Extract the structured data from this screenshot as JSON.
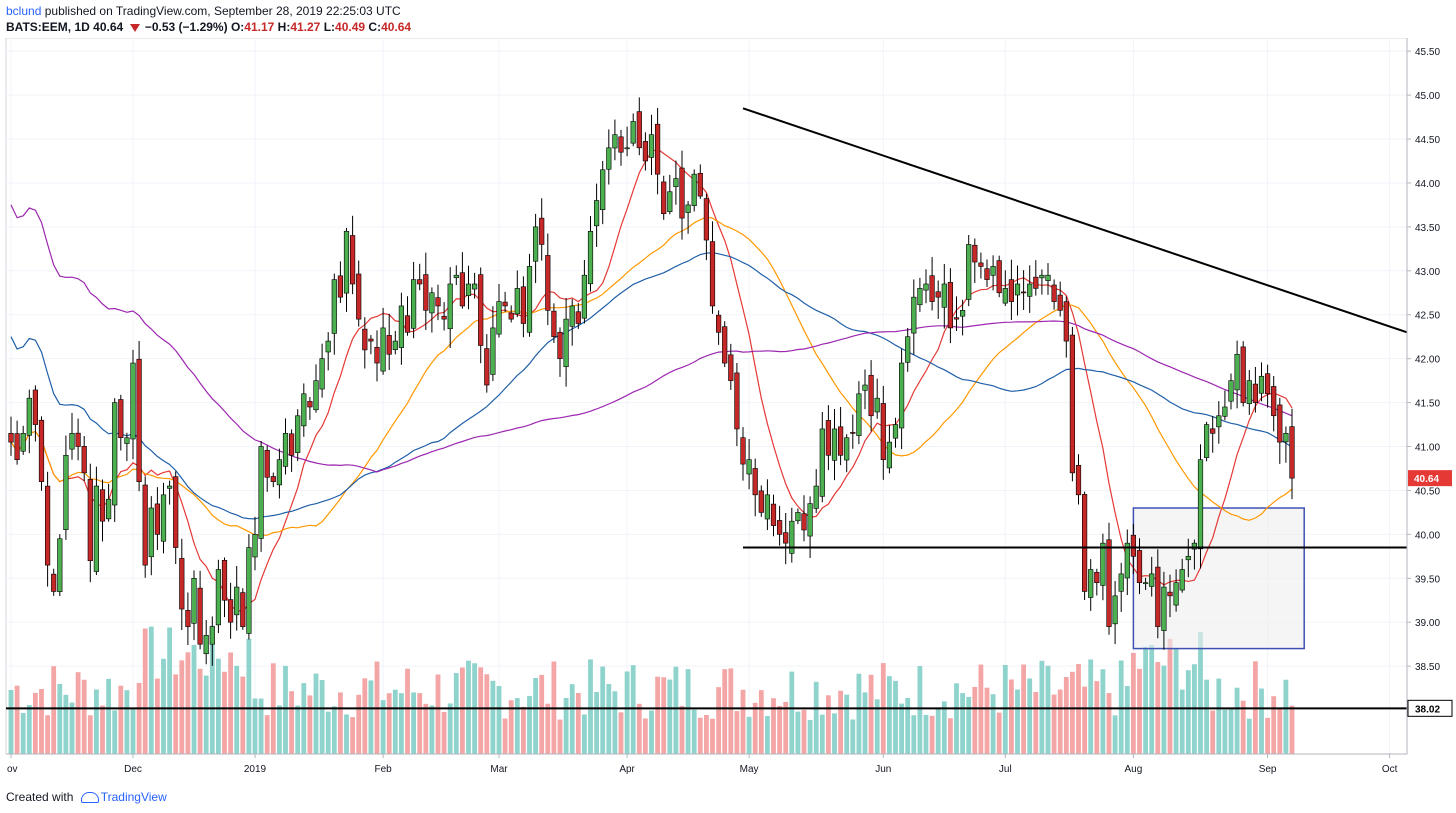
{
  "header": {
    "user": "bclund",
    "published": "published on TradingView.com, September 28, 2019 22:25:03 UTC",
    "symbol": "BATS:EEM, 1D",
    "last": "40.64",
    "change": "−0.53 (−1.29%)",
    "o_label": "O:",
    "o": "41.17",
    "h_label": "H:",
    "h": "41.27",
    "l_label": "L:",
    "l": "40.49",
    "c_label": "C:",
    "c": "40.64"
  },
  "footer": {
    "created_with": "Created with",
    "brand": "TradingView"
  },
  "chart_data": {
    "type": "candlestick",
    "y_axis": {
      "position": "right",
      "min": 37.5,
      "max": 45.65,
      "ticks": [
        "45.50",
        "45.00",
        "44.50",
        "44.00",
        "43.50",
        "43.00",
        "42.50",
        "42.00",
        "41.50",
        "41.00",
        "40.50",
        "40.00",
        "39.50",
        "39.00",
        "38.50"
      ]
    },
    "x_axis": {
      "ticks": [
        {
          "label": "ov",
          "bar": 0
        },
        {
          "label": "Dec",
          "bar": 20
        },
        {
          "label": "2019",
          "bar": 40
        },
        {
          "label": "Feb",
          "bar": 61
        },
        {
          "label": "Mar",
          "bar": 80
        },
        {
          "label": "Apr",
          "bar": 101
        },
        {
          "label": "May",
          "bar": 121
        },
        {
          "label": "Jun",
          "bar": 143
        },
        {
          "label": "Jul",
          "bar": 163
        },
        {
          "label": "Aug",
          "bar": 184
        },
        {
          "label": "Sep",
          "bar": 206
        },
        {
          "label": "Oct",
          "bar": 226
        }
      ]
    },
    "price_label": {
      "value": "40.64",
      "color": "#e53935"
    },
    "support_label": {
      "value": "38.02",
      "color": "#000000"
    },
    "closes": [
      41.05,
      40.85,
      41.15,
      41.55,
      41.25,
      40.6,
      39.65,
      39.35,
      39.95,
      40.9,
      41.15,
      41.0,
      40.7,
      39.7,
      40.55,
      40.15,
      40.4,
      41.5,
      41.1,
      41.1,
      41.95,
      40.6,
      39.65,
      40.3,
      40.0,
      40.45,
      40.55,
      39.85,
      39.15,
      38.95,
      39.5,
      38.75,
      38.85,
      38.95,
      39.6,
      39.25,
      39.0,
      39.4,
      38.95,
      39.85,
      40.0,
      41.0,
      40.65,
      40.6,
      40.85,
      41.15,
      40.9,
      41.35,
      41.6,
      41.45,
      41.75,
      42.0,
      42.2,
      42.9,
      42.7,
      43.45,
      42.85,
      42.45,
      42.1,
      42.2,
      41.95,
      42.35,
      42.05,
      42.2,
      42.6,
      42.3,
      42.9,
      42.85,
      42.55,
      42.75,
      42.6,
      42.45,
      42.85,
      42.95,
      42.6,
      42.85,
      42.85,
      42.15,
      41.7,
      42.35,
      42.65,
      42.6,
      42.45,
      42.8,
      42.4,
      43.05,
      43.5,
      43.3,
      42.55,
      42.25,
      42.0,
      42.45,
      42.6,
      42.4,
      42.95,
      43.45,
      43.8,
      44.15,
      44.4,
      44.55,
      44.35,
      44.4,
      44.7,
      44.4,
      44.25,
      44.55,
      44.1,
      43.65,
      43.9,
      44.05,
      43.6,
      43.75,
      44.1,
      43.85,
      43.35,
      42.6,
      42.3,
      41.95,
      41.75,
      41.2,
      40.8,
      40.85,
      40.45,
      40.25,
      40.45,
      40.1,
      40.0,
      39.9,
      40.15,
      40.25,
      40.05,
      40.35,
      40.55,
      41.2,
      40.9,
      41.2,
      40.9,
      41.1,
      41.15,
      41.6,
      41.7,
      41.35,
      41.55,
      40.85,
      41.05,
      41.25,
      41.95,
      42.25,
      42.7,
      42.8,
      42.85,
      42.65,
      42.7,
      42.85,
      42.35,
      42.45,
      42.55,
      43.3,
      43.1,
      43.05,
      42.9,
      43.05,
      42.75,
      42.8,
      42.65,
      42.85,
      42.75,
      42.85,
      42.8,
      42.95,
      42.95,
      42.65,
      42.55,
      42.2,
      40.7,
      40.45,
      39.35,
      39.6,
      39.45,
      39.9,
      38.95,
      39.3,
      39.55,
      39.9,
      39.75,
      39.45,
      39.45,
      39.55,
      38.95,
      39.4,
      39.3,
      39.45,
      39.6,
      39.75,
      39.9,
      40.85,
      41.25,
      41.15,
      41.35,
      41.45,
      41.75,
      42.05,
      41.5,
      41.75,
      41.5,
      41.8,
      41.6,
      41.35,
      41.05,
      41.15,
      40.64
    ],
    "volume_max": 1,
    "annotations": {
      "resistance_line": {
        "from_bar": 120,
        "from_price": 44.85,
        "to_bar": 226,
        "to_price": 42.3,
        "color": "#000000"
      },
      "support_line_1": {
        "from_bar": 120,
        "to_bar": 226,
        "price": 39.85,
        "color": "#000000"
      },
      "support_line_2": {
        "from_bar": 0,
        "to_bar": 226,
        "price": 38.02,
        "color": "#000000"
      },
      "range_box": {
        "from_bar": 184,
        "to_bar": 212,
        "top": 40.3,
        "bottom": 38.7,
        "border": "#3f51b5",
        "fill": "#eeeeee"
      }
    },
    "moving_averages": [
      {
        "period": 10,
        "color": "#e53935"
      },
      {
        "period": 30,
        "color": "#ff9800"
      },
      {
        "period": 50,
        "color": "#1f5fa8"
      },
      {
        "period": 100,
        "color": "#9c27b0"
      }
    ],
    "colors": {
      "up": "#4caf50",
      "down": "#c62828",
      "vol_up": "#8fd3cd",
      "vol_down": "#f4a6a6",
      "grid": "#f0f3fa",
      "axis": "#b2b5be"
    }
  }
}
